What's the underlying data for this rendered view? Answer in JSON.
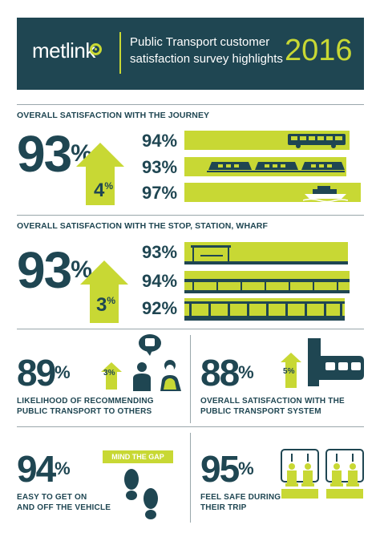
{
  "header": {
    "logo": "metlink",
    "title": "Public Transport customer satisfaction survey highlights",
    "year": "2016"
  },
  "journey": {
    "title": "OVERALL SATISFACTION WITH THE JOURNEY",
    "overall": "93",
    "increase": "4",
    "modes": [
      {
        "icon": "bus-icon",
        "value": "94"
      },
      {
        "icon": "train-icon",
        "value": "93"
      },
      {
        "icon": "ferry-icon",
        "value": "97"
      }
    ]
  },
  "stop": {
    "title": "OVERALL SATISFACTION WITH THE STOP, STATION, WHARF",
    "overall": "93",
    "increase": "3",
    "modes": [
      {
        "icon": "bus-shelter-icon",
        "value": "93"
      },
      {
        "icon": "station-icon",
        "value": "94"
      },
      {
        "icon": "wharf-icon",
        "value": "92"
      }
    ]
  },
  "recommend": {
    "value": "89",
    "increase": "3",
    "caption_line1": "LIKELIHOOD OF RECOMMENDING",
    "caption_line2": "PUBLIC TRANSPORT TO OTHERS"
  },
  "system": {
    "value": "88",
    "increase": "5",
    "caption_line1": "OVERALL SATISFACTION WITH THE",
    "caption_line2": "PUBLIC TRANSPORT SYSTEM"
  },
  "easy": {
    "value": "94",
    "sign": "MIND THE GAP",
    "caption_line1": "EASY TO GET ON",
    "caption_line2": "AND OFF THE VEHICLE"
  },
  "safe": {
    "value": "95",
    "caption_line1": "FEEL SAFE DURING",
    "caption_line2": "THEIR TRIP"
  },
  "colors": {
    "navy": "#1f4652",
    "lime": "#c8d834"
  }
}
